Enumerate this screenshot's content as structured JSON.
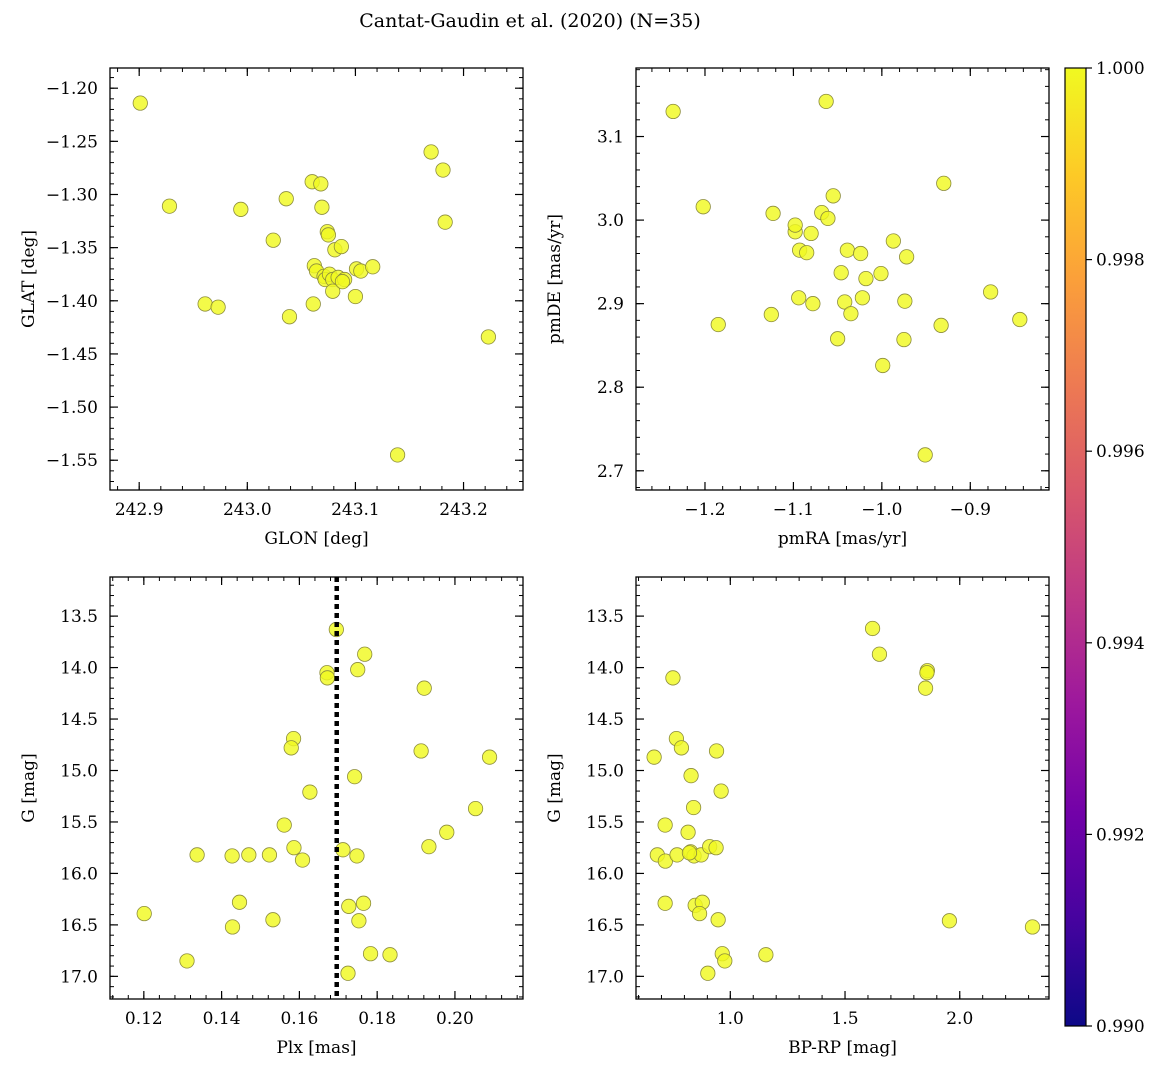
{
  "figure": {
    "title": "Cantat-Gaudin et al. (2020) (N=35)"
  },
  "colors": {
    "point_fill": "#f0f921",
    "point_edge": "#8c8c3c",
    "frame": "#000000",
    "vline": "#000000",
    "colormap": [
      "#0d0887",
      "#46039f",
      "#7201a8",
      "#9c179e",
      "#bd3786",
      "#d8576b",
      "#ed7953",
      "#fb9f3a",
      "#fdca26",
      "#f0f921"
    ]
  },
  "colorbar": {
    "vmin": 0.99,
    "vmax": 1.0,
    "ticks": [
      "0.990",
      "0.992",
      "0.994",
      "0.996",
      "0.998",
      "1.000"
    ],
    "tick_values": [
      0.99,
      0.992,
      0.994,
      0.996,
      0.998,
      1.0
    ]
  },
  "chart_data": [
    {
      "type": "scatter",
      "panel": "top-left",
      "xlabel": "GLON [deg]",
      "ylabel": "GLAT [deg]",
      "xlim": [
        242.873,
        243.255
      ],
      "ylim": [
        -1.578,
        -1.181
      ],
      "y_inverted": false,
      "xticks": [
        242.9,
        243.0,
        243.1,
        243.2
      ],
      "xtick_labels": [
        "242.9",
        "243.0",
        "243.1",
        "243.2"
      ],
      "yticks": [
        -1.55,
        -1.5,
        -1.45,
        -1.4,
        -1.35,
        -1.3,
        -1.25,
        -1.2
      ],
      "ytick_labels": [
        "−1.55",
        "−1.50",
        "−1.45",
        "−1.40",
        "−1.35",
        "−1.30",
        "−1.25",
        "−1.20"
      ],
      "points": [
        [
          242.901,
          -1.214
        ],
        [
          242.928,
          -1.311
        ],
        [
          242.961,
          -1.403
        ],
        [
          242.973,
          -1.406
        ],
        [
          242.994,
          -1.314
        ],
        [
          243.024,
          -1.343
        ],
        [
          243.036,
          -1.304
        ],
        [
          243.039,
          -1.415
        ],
        [
          243.06,
          -1.288
        ],
        [
          243.068,
          -1.29
        ],
        [
          243.069,
          -1.312
        ],
        [
          243.074,
          -1.335
        ],
        [
          243.075,
          -1.338
        ],
        [
          243.081,
          -1.352
        ],
        [
          243.087,
          -1.349
        ],
        [
          243.062,
          -1.367
        ],
        [
          243.064,
          -1.372
        ],
        [
          243.071,
          -1.377
        ],
        [
          243.072,
          -1.38
        ],
        [
          243.076,
          -1.375
        ],
        [
          243.079,
          -1.38
        ],
        [
          243.084,
          -1.378
        ],
        [
          243.09,
          -1.38
        ],
        [
          243.101,
          -1.37
        ],
        [
          243.105,
          -1.372
        ],
        [
          243.116,
          -1.368
        ],
        [
          243.1,
          -1.396
        ],
        [
          243.079,
          -1.391
        ],
        [
          243.061,
          -1.403
        ],
        [
          243.17,
          -1.26
        ],
        [
          243.181,
          -1.277
        ],
        [
          243.183,
          -1.326
        ],
        [
          243.223,
          -1.434
        ],
        [
          243.139,
          -1.545
        ],
        [
          243.088,
          -1.382
        ]
      ]
    },
    {
      "type": "scatter",
      "panel": "top-right",
      "xlabel": "pmRA [mas/yr]",
      "ylabel": "pmDE [mas/yr]",
      "xlim": [
        -1.278,
        -0.811
      ],
      "ylim": [
        2.677,
        3.182
      ],
      "y_inverted": false,
      "xticks": [
        -1.2,
        -1.1,
        -1.0,
        -0.9
      ],
      "xtick_labels": [
        "−1.2",
        "−1.1",
        "−1.0",
        "−0.9"
      ],
      "yticks": [
        2.7,
        2.8,
        2.9,
        3.0,
        3.1
      ],
      "ytick_labels": [
        "2.7",
        "2.8",
        "2.9",
        "3.0",
        "3.1"
      ],
      "points": [
        [
          -1.236,
          3.13
        ],
        [
          -1.063,
          3.142
        ],
        [
          -1.202,
          3.016
        ],
        [
          -1.185,
          2.875
        ],
        [
          -1.123,
          3.008
        ],
        [
          -1.125,
          2.887
        ],
        [
          -1.098,
          2.986
        ],
        [
          -1.098,
          2.994
        ],
        [
          -1.093,
          2.964
        ],
        [
          -1.085,
          2.961
        ],
        [
          -1.08,
          2.984
        ],
        [
          -1.094,
          2.907
        ],
        [
          -1.078,
          2.9
        ],
        [
          -1.068,
          3.009
        ],
        [
          -1.061,
          3.002
        ],
        [
          -1.055,
          3.029
        ],
        [
          -1.046,
          2.937
        ],
        [
          -1.039,
          2.964
        ],
        [
          -1.042,
          2.902
        ],
        [
          -1.035,
          2.888
        ],
        [
          -1.024,
          2.96
        ],
        [
          -1.018,
          2.93
        ],
        [
          -1.022,
          2.907
        ],
        [
          -1.05,
          2.858
        ],
        [
          -1.001,
          2.936
        ],
        [
          -0.999,
          2.826
        ],
        [
          -0.987,
          2.975
        ],
        [
          -0.972,
          2.956
        ],
        [
          -0.974,
          2.903
        ],
        [
          -0.975,
          2.857
        ],
        [
          -0.93,
          3.044
        ],
        [
          -0.933,
          2.874
        ],
        [
          -0.951,
          2.719
        ],
        [
          -0.877,
          2.914
        ],
        [
          -0.844,
          2.881
        ]
      ]
    },
    {
      "type": "scatter",
      "panel": "bottom-left",
      "xlabel": "Plx [mas]",
      "ylabel": "G [mag]",
      "xlim": [
        0.1113,
        0.2175
      ],
      "ylim": [
        17.22,
        13.12
      ],
      "y_inverted": true,
      "vline_x": 0.1696,
      "xticks": [
        0.12,
        0.14,
        0.16,
        0.18,
        0.2
      ],
      "xtick_labels": [
        "0.12",
        "0.14",
        "0.16",
        "0.18",
        "0.20"
      ],
      "yticks": [
        13.5,
        14.0,
        14.5,
        15.0,
        15.5,
        16.0,
        16.5,
        17.0
      ],
      "ytick_labels": [
        "13.5",
        "14.0",
        "14.5",
        "15.0",
        "15.5",
        "16.0",
        "16.5",
        "17.0"
      ],
      "points": [
        [
          0.1695,
          13.63
        ],
        [
          0.1768,
          13.87
        ],
        [
          0.1671,
          14.05
        ],
        [
          0.1672,
          14.1
        ],
        [
          0.175,
          14.02
        ],
        [
          0.1921,
          14.2
        ],
        [
          0.1585,
          14.69
        ],
        [
          0.1579,
          14.78
        ],
        [
          0.1913,
          14.81
        ],
        [
          0.2089,
          14.87
        ],
        [
          0.1742,
          15.06
        ],
        [
          0.1627,
          15.21
        ],
        [
          0.2053,
          15.37
        ],
        [
          0.1561,
          15.53
        ],
        [
          0.1979,
          15.6
        ],
        [
          0.1586,
          15.75
        ],
        [
          0.1933,
          15.74
        ],
        [
          0.1712,
          15.77
        ],
        [
          0.1748,
          15.83
        ],
        [
          0.1337,
          15.82
        ],
        [
          0.1427,
          15.83
        ],
        [
          0.147,
          15.82
        ],
        [
          0.1523,
          15.82
        ],
        [
          0.1608,
          15.87
        ],
        [
          0.1446,
          16.28
        ],
        [
          0.1727,
          16.32
        ],
        [
          0.1765,
          16.29
        ],
        [
          0.1753,
          16.46
        ],
        [
          0.1201,
          16.39
        ],
        [
          0.1532,
          16.45
        ],
        [
          0.1428,
          16.52
        ],
        [
          0.1783,
          16.78
        ],
        [
          0.1833,
          16.79
        ],
        [
          0.1311,
          16.85
        ],
        [
          0.1725,
          16.97
        ]
      ]
    },
    {
      "type": "scatter",
      "panel": "bottom-right",
      "xlabel": "BP-RP [mag]",
      "ylabel": "G [mag]",
      "xlim": [
        0.589,
        2.389
      ],
      "ylim": [
        17.22,
        13.12
      ],
      "y_inverted": true,
      "xticks": [
        1.0,
        1.5,
        2.0
      ],
      "xtick_labels": [
        "1.0",
        "1.5",
        "2.0"
      ],
      "yticks": [
        13.5,
        14.0,
        14.5,
        15.0,
        15.5,
        16.0,
        16.5,
        17.0
      ],
      "ytick_labels": [
        "13.5",
        "14.0",
        "14.5",
        "15.0",
        "15.5",
        "16.0",
        "16.5",
        "17.0"
      ],
      "points": [
        [
          1.62,
          13.62
        ],
        [
          1.65,
          13.87
        ],
        [
          1.859,
          14.03
        ],
        [
          1.857,
          14.05
        ],
        [
          1.851,
          14.2
        ],
        [
          0.75,
          14.1
        ],
        [
          0.765,
          14.69
        ],
        [
          0.787,
          14.78
        ],
        [
          0.94,
          14.81
        ],
        [
          0.668,
          14.87
        ],
        [
          0.829,
          15.05
        ],
        [
          0.96,
          15.2
        ],
        [
          0.84,
          15.36
        ],
        [
          0.716,
          15.53
        ],
        [
          0.816,
          15.6
        ],
        [
          0.682,
          15.82
        ],
        [
          0.717,
          15.88
        ],
        [
          0.768,
          15.82
        ],
        [
          0.827,
          15.79
        ],
        [
          0.842,
          15.83
        ],
        [
          0.873,
          15.82
        ],
        [
          0.91,
          15.74
        ],
        [
          0.938,
          15.75
        ],
        [
          0.716,
          16.29
        ],
        [
          0.847,
          16.31
        ],
        [
          0.878,
          16.28
        ],
        [
          0.866,
          16.39
        ],
        [
          0.947,
          16.45
        ],
        [
          1.955,
          16.46
        ],
        [
          2.317,
          16.52
        ],
        [
          0.965,
          16.78
        ],
        [
          1.155,
          16.79
        ],
        [
          0.976,
          16.85
        ],
        [
          0.902,
          16.97
        ],
        [
          0.822,
          15.8
        ]
      ]
    }
  ]
}
